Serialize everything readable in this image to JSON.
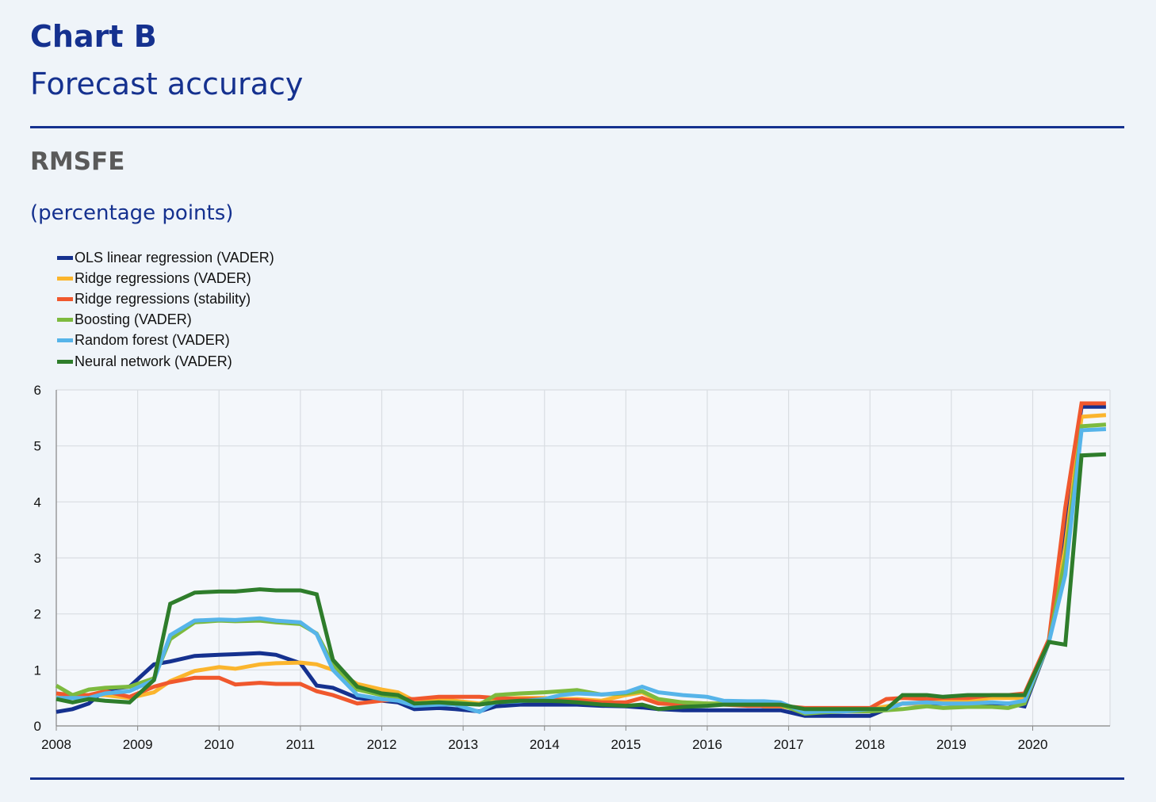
{
  "header": {
    "chart_label": "Chart B",
    "title": "Forecast accuracy",
    "subtitle": "RMSFE",
    "unit": "(percentage points)"
  },
  "chart_data": {
    "type": "line",
    "title": "Forecast accuracy",
    "ylabel": "RMSFE (percentage points)",
    "xlabel": "",
    "xlim": [
      2008,
      2020.95
    ],
    "ylim": [
      0,
      6
    ],
    "grid": true,
    "legend_position": "top-left",
    "x_ticks": [
      "2008",
      "2009",
      "2010",
      "2011",
      "2012",
      "2013",
      "2014",
      "2015",
      "2016",
      "2017",
      "2018",
      "2019",
      "2020"
    ],
    "y_ticks": [
      "0",
      "1",
      "2",
      "3",
      "4",
      "5",
      "6"
    ],
    "x": [
      2008.0,
      2008.2,
      2008.4,
      2008.6,
      2008.9,
      2009.2,
      2009.4,
      2009.7,
      2010.0,
      2010.2,
      2010.5,
      2010.7,
      2011.0,
      2011.2,
      2011.4,
      2011.7,
      2012.0,
      2012.2,
      2012.4,
      2012.7,
      2012.9,
      2013.2,
      2013.4,
      2013.7,
      2014.0,
      2014.2,
      2014.4,
      2014.7,
      2015.0,
      2015.2,
      2015.4,
      2015.7,
      2016.0,
      2016.2,
      2016.5,
      2016.7,
      2016.9,
      2017.2,
      2017.4,
      2017.7,
      2018.0,
      2018.2,
      2018.4,
      2018.7,
      2018.9,
      2019.2,
      2019.5,
      2019.7,
      2019.9,
      2020.2,
      2020.4,
      2020.6,
      2020.9
    ],
    "series": [
      {
        "name": "OLS linear regression (VADER)",
        "color": "#15318f",
        "values": [
          0.25,
          0.3,
          0.4,
          0.65,
          0.7,
          1.1,
          1.15,
          1.25,
          1.27,
          1.28,
          1.3,
          1.27,
          1.12,
          0.72,
          0.68,
          0.5,
          0.45,
          0.42,
          0.3,
          0.32,
          0.3,
          0.26,
          0.35,
          0.38,
          0.38,
          0.38,
          0.38,
          0.36,
          0.35,
          0.33,
          0.3,
          0.28,
          0.28,
          0.28,
          0.28,
          0.28,
          0.28,
          0.18,
          0.18,
          0.18,
          0.18,
          0.3,
          0.4,
          0.4,
          0.4,
          0.4,
          0.4,
          0.4,
          0.35,
          1.5,
          3.7,
          5.7,
          5.7
        ]
      },
      {
        "name": "Ridge regressions (VADER)",
        "color": "#fbb52d",
        "values": [
          0.5,
          0.55,
          0.55,
          0.55,
          0.5,
          0.6,
          0.8,
          0.98,
          1.05,
          1.02,
          1.1,
          1.12,
          1.13,
          1.1,
          1.0,
          0.75,
          0.65,
          0.6,
          0.45,
          0.48,
          0.45,
          0.4,
          0.48,
          0.5,
          0.5,
          0.48,
          0.48,
          0.45,
          0.55,
          0.6,
          0.45,
          0.42,
          0.4,
          0.4,
          0.4,
          0.35,
          0.35,
          0.28,
          0.28,
          0.28,
          0.3,
          0.35,
          0.4,
          0.4,
          0.45,
          0.45,
          0.5,
          0.5,
          0.5,
          1.5,
          3.2,
          5.52,
          5.55
        ]
      },
      {
        "name": "Ridge regressions (stability)",
        "color": "#f0582d",
        "values": [
          0.58,
          0.55,
          0.55,
          0.62,
          0.52,
          0.7,
          0.78,
          0.86,
          0.86,
          0.74,
          0.77,
          0.75,
          0.75,
          0.62,
          0.55,
          0.4,
          0.45,
          0.48,
          0.48,
          0.52,
          0.52,
          0.52,
          0.5,
          0.48,
          0.48,
          0.46,
          0.46,
          0.42,
          0.42,
          0.5,
          0.4,
          0.38,
          0.38,
          0.38,
          0.36,
          0.36,
          0.36,
          0.32,
          0.32,
          0.32,
          0.32,
          0.48,
          0.5,
          0.48,
          0.5,
          0.5,
          0.55,
          0.55,
          0.58,
          1.55,
          3.9,
          5.76,
          5.76
        ]
      },
      {
        "name": "Boosting (VADER)",
        "color": "#7dba3e",
        "values": [
          0.72,
          0.55,
          0.65,
          0.68,
          0.7,
          0.85,
          1.55,
          1.85,
          1.88,
          1.87,
          1.88,
          1.85,
          1.82,
          1.65,
          1.1,
          0.65,
          0.55,
          0.52,
          0.4,
          0.42,
          0.42,
          0.38,
          0.55,
          0.58,
          0.6,
          0.62,
          0.64,
          0.56,
          0.58,
          0.62,
          0.48,
          0.42,
          0.4,
          0.4,
          0.4,
          0.4,
          0.38,
          0.22,
          0.24,
          0.26,
          0.26,
          0.28,
          0.3,
          0.35,
          0.32,
          0.34,
          0.34,
          0.32,
          0.4,
          1.5,
          3.0,
          5.35,
          5.38
        ]
      },
      {
        "name": "Random forest (VADER)",
        "color": "#56b4e9",
        "values": [
          0.5,
          0.5,
          0.5,
          0.58,
          0.62,
          0.82,
          1.62,
          1.88,
          1.9,
          1.89,
          1.92,
          1.88,
          1.85,
          1.64,
          1.0,
          0.55,
          0.48,
          0.45,
          0.36,
          0.38,
          0.38,
          0.25,
          0.42,
          0.44,
          0.48,
          0.55,
          0.58,
          0.56,
          0.6,
          0.7,
          0.6,
          0.55,
          0.52,
          0.45,
          0.44,
          0.44,
          0.42,
          0.24,
          0.26,
          0.26,
          0.3,
          0.3,
          0.4,
          0.42,
          0.4,
          0.4,
          0.42,
          0.4,
          0.45,
          1.5,
          2.7,
          5.28,
          5.3
        ]
      },
      {
        "name": "Neural network (VADER)",
        "color": "#2e7d2b",
        "values": [
          0.48,
          0.42,
          0.48,
          0.45,
          0.42,
          0.82,
          2.18,
          2.38,
          2.4,
          2.4,
          2.44,
          2.42,
          2.42,
          2.35,
          1.18,
          0.7,
          0.58,
          0.55,
          0.4,
          0.42,
          0.4,
          0.38,
          0.42,
          0.45,
          0.45,
          0.44,
          0.42,
          0.38,
          0.36,
          0.38,
          0.3,
          0.34,
          0.36,
          0.38,
          0.38,
          0.38,
          0.38,
          0.3,
          0.3,
          0.3,
          0.3,
          0.3,
          0.55,
          0.55,
          0.52,
          0.55,
          0.55,
          0.55,
          0.55,
          1.5,
          1.45,
          4.83,
          4.85
        ]
      }
    ]
  }
}
